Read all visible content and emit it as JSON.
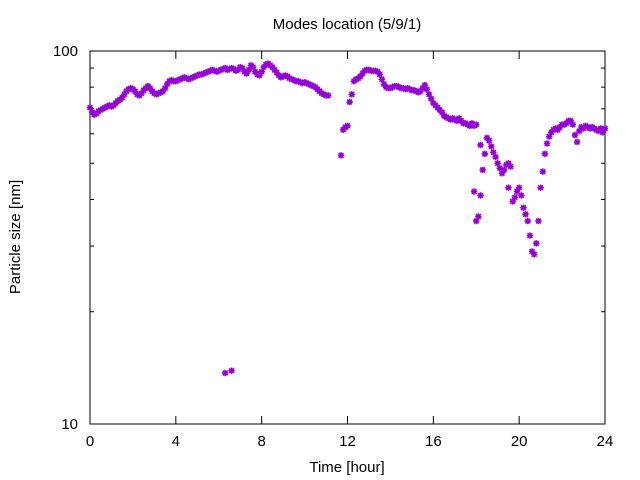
{
  "chart_data": {
    "type": "scatter",
    "title": "Modes location (5/9/1)",
    "xlabel": "Time [hour]",
    "ylabel": "Particle size [nm]",
    "xlim": [
      0,
      24
    ],
    "ylim": [
      10,
      100
    ],
    "y_scale": "log",
    "grid": false,
    "marker_color": "#9400d3",
    "x_ticks": [
      0,
      4,
      8,
      12,
      16,
      20,
      24
    ],
    "y_ticks": [
      10,
      100
    ],
    "series": [
      {
        "points": [
          [
            0.0,
            70.5
          ],
          [
            0.1,
            68.5
          ],
          [
            0.2,
            67.5
          ],
          [
            0.3,
            68.0
          ],
          [
            0.4,
            69.0
          ],
          [
            0.5,
            69.5
          ],
          [
            0.6,
            70.0
          ],
          [
            0.7,
            70.5
          ],
          [
            0.8,
            71.0
          ],
          [
            0.9,
            71.5
          ],
          [
            1.0,
            71.0
          ],
          [
            1.1,
            71.5
          ],
          [
            1.2,
            72.5
          ],
          [
            1.3,
            73.5
          ],
          [
            1.4,
            74.0
          ],
          [
            1.5,
            75.0
          ],
          [
            1.6,
            76.5
          ],
          [
            1.7,
            78.0
          ],
          [
            1.8,
            79.0
          ],
          [
            1.9,
            79.5
          ],
          [
            2.0,
            79.0
          ],
          [
            2.1,
            78.0
          ],
          [
            2.2,
            76.5
          ],
          [
            2.3,
            76.0
          ],
          [
            2.4,
            77.0
          ],
          [
            2.5,
            78.5
          ],
          [
            2.6,
            79.5
          ],
          [
            2.7,
            80.5
          ],
          [
            2.8,
            79.5
          ],
          [
            2.9,
            78.0
          ],
          [
            3.0,
            77.0
          ],
          [
            3.1,
            76.5
          ],
          [
            3.2,
            77.0
          ],
          [
            3.3,
            77.5
          ],
          [
            3.4,
            78.0
          ],
          [
            3.5,
            79.5
          ],
          [
            3.6,
            81.5
          ],
          [
            3.7,
            83.0
          ],
          [
            3.8,
            83.5
          ],
          [
            3.9,
            83.0
          ],
          [
            4.0,
            83.0
          ],
          [
            4.1,
            83.5
          ],
          [
            4.2,
            84.0
          ],
          [
            4.3,
            84.5
          ],
          [
            4.4,
            85.0
          ],
          [
            4.5,
            84.5
          ],
          [
            4.6,
            84.0
          ],
          [
            4.7,
            84.5
          ],
          [
            4.8,
            85.0
          ],
          [
            4.9,
            85.5
          ],
          [
            5.0,
            86.0
          ],
          [
            5.1,
            86.5
          ],
          [
            5.2,
            86.5
          ],
          [
            5.3,
            87.0
          ],
          [
            5.4,
            87.5
          ],
          [
            5.5,
            88.0
          ],
          [
            5.6,
            88.5
          ],
          [
            5.7,
            89.0
          ],
          [
            5.8,
            88.5
          ],
          [
            5.9,
            88.0
          ],
          [
            6.0,
            88.5
          ],
          [
            6.1,
            89.0
          ],
          [
            6.2,
            89.5
          ],
          [
            6.3,
            90.0
          ],
          [
            6.4,
            89.0
          ],
          [
            6.5,
            89.5
          ],
          [
            6.6,
            90.0
          ],
          [
            6.7,
            89.5
          ],
          [
            6.8,
            88.5
          ],
          [
            6.9,
            89.0
          ],
          [
            7.0,
            90.5
          ],
          [
            7.1,
            90.0
          ],
          [
            7.2,
            88.0
          ],
          [
            7.3,
            87.0
          ],
          [
            7.4,
            89.0
          ],
          [
            7.5,
            91.5
          ],
          [
            7.6,
            90.5
          ],
          [
            7.7,
            88.0
          ],
          [
            7.8,
            86.5
          ],
          [
            7.9,
            86.0
          ],
          [
            8.0,
            88.0
          ],
          [
            8.1,
            90.5
          ],
          [
            8.2,
            92.0
          ],
          [
            8.3,
            92.5
          ],
          [
            8.4,
            91.5
          ],
          [
            8.5,
            90.5
          ],
          [
            8.6,
            89.0
          ],
          [
            8.7,
            87.5
          ],
          [
            8.8,
            86.0
          ],
          [
            8.9,
            85.0
          ],
          [
            9.0,
            85.5
          ],
          [
            9.1,
            86.0
          ],
          [
            9.2,
            85.5
          ],
          [
            9.3,
            84.5
          ],
          [
            9.4,
            84.0
          ],
          [
            9.5,
            83.5
          ],
          [
            9.6,
            83.0
          ],
          [
            9.7,
            83.0
          ],
          [
            9.8,
            82.5
          ],
          [
            9.9,
            82.0
          ],
          [
            10.0,
            82.5
          ],
          [
            10.1,
            82.0
          ],
          [
            10.2,
            81.5
          ],
          [
            10.3,
            81.0
          ],
          [
            10.4,
            80.5
          ],
          [
            10.5,
            80.0
          ],
          [
            10.6,
            79.0
          ],
          [
            10.7,
            78.0
          ],
          [
            10.8,
            77.0
          ],
          [
            10.9,
            76.5
          ],
          [
            11.0,
            76.0
          ],
          [
            11.1,
            76.0
          ],
          [
            6.3,
            13.7
          ],
          [
            6.6,
            13.9
          ],
          [
            11.7,
            52.5
          ],
          [
            11.8,
            61.5
          ],
          [
            11.9,
            62.5
          ],
          [
            12.0,
            63.0
          ],
          [
            12.1,
            73.0
          ],
          [
            12.2,
            76.5
          ],
          [
            12.3,
            83.0
          ],
          [
            12.4,
            84.0
          ],
          [
            12.5,
            84.5
          ],
          [
            12.6,
            85.5
          ],
          [
            12.7,
            87.0
          ],
          [
            12.8,
            88.5
          ],
          [
            12.9,
            89.0
          ],
          [
            13.0,
            89.0
          ],
          [
            13.1,
            88.5
          ],
          [
            13.2,
            88.5
          ],
          [
            13.3,
            88.5
          ],
          [
            13.4,
            88.0
          ],
          [
            13.5,
            86.5
          ],
          [
            13.6,
            84.0
          ],
          [
            13.7,
            81.5
          ],
          [
            13.8,
            80.0
          ],
          [
            13.9,
            79.5
          ],
          [
            14.0,
            79.5
          ],
          [
            14.1,
            80.0
          ],
          [
            14.2,
            80.5
          ],
          [
            14.3,
            80.5
          ],
          [
            14.4,
            80.0
          ],
          [
            14.5,
            79.5
          ],
          [
            14.6,
            79.5
          ],
          [
            14.7,
            79.0
          ],
          [
            14.8,
            79.5
          ],
          [
            14.9,
            79.0
          ],
          [
            15.0,
            78.5
          ],
          [
            15.1,
            78.5
          ],
          [
            15.2,
            78.0
          ],
          [
            15.3,
            77.5
          ],
          [
            15.4,
            78.0
          ],
          [
            15.5,
            79.5
          ],
          [
            15.6,
            81.0
          ],
          [
            15.7,
            79.0
          ],
          [
            15.8,
            76.5
          ],
          [
            15.9,
            74.5
          ],
          [
            16.0,
            72.5
          ],
          [
            16.1,
            71.5
          ],
          [
            16.2,
            70.5
          ],
          [
            16.3,
            69.5
          ],
          [
            16.4,
            68.5
          ],
          [
            16.5,
            67.0
          ],
          [
            16.6,
            66.5
          ],
          [
            16.7,
            66.0
          ],
          [
            16.8,
            65.5
          ],
          [
            16.9,
            66.0
          ],
          [
            17.0,
            65.5
          ],
          [
            17.1,
            65.0
          ],
          [
            17.2,
            66.0
          ],
          [
            17.3,
            65.0
          ],
          [
            17.4,
            64.0
          ],
          [
            17.5,
            64.0
          ],
          [
            17.6,
            63.5
          ],
          [
            17.7,
            63.0
          ],
          [
            17.8,
            64.0
          ],
          [
            17.9,
            63.0
          ],
          [
            18.0,
            63.5
          ],
          [
            17.9,
            42.0
          ],
          [
            18.0,
            35.0
          ],
          [
            18.1,
            36.0
          ],
          [
            18.2,
            41.0
          ],
          [
            18.2,
            56.0
          ],
          [
            18.3,
            48.0
          ],
          [
            18.4,
            53.0
          ],
          [
            18.5,
            58.5
          ],
          [
            18.6,
            57.5
          ],
          [
            18.7,
            55.5
          ],
          [
            18.8,
            53.5
          ],
          [
            18.9,
            52.0
          ],
          [
            19.0,
            50.0
          ],
          [
            19.1,
            48.5
          ],
          [
            19.2,
            47.0
          ],
          [
            19.3,
            48.0
          ],
          [
            19.4,
            49.5
          ],
          [
            19.5,
            50.0
          ],
          [
            19.6,
            49.0
          ],
          [
            19.5,
            43.0
          ],
          [
            19.7,
            39.5
          ],
          [
            19.8,
            40.5
          ],
          [
            19.9,
            42.0
          ],
          [
            20.0,
            43.0
          ],
          [
            20.1,
            41.0
          ],
          [
            20.2,
            38.0
          ],
          [
            20.3,
            36.5
          ],
          [
            20.4,
            35.0
          ],
          [
            20.5,
            32.0
          ],
          [
            20.6,
            29.0
          ],
          [
            20.7,
            28.5
          ],
          [
            20.8,
            30.5
          ],
          [
            20.9,
            35.0
          ],
          [
            21.0,
            43.0
          ],
          [
            21.1,
            47.5
          ],
          [
            21.2,
            53.0
          ],
          [
            21.3,
            56.5
          ],
          [
            21.4,
            59.0
          ],
          [
            21.5,
            60.5
          ],
          [
            21.6,
            61.5
          ],
          [
            21.7,
            62.0
          ],
          [
            21.8,
            61.5
          ],
          [
            21.9,
            62.5
          ],
          [
            22.0,
            63.5
          ],
          [
            22.1,
            63.5
          ],
          [
            22.2,
            64.0
          ],
          [
            22.3,
            65.0
          ],
          [
            22.4,
            65.0
          ],
          [
            22.5,
            63.5
          ],
          [
            22.6,
            59.5
          ],
          [
            22.7,
            57.0
          ],
          [
            22.8,
            61.0
          ],
          [
            22.9,
            62.5
          ],
          [
            23.0,
            62.0
          ],
          [
            23.1,
            63.0
          ],
          [
            23.2,
            62.5
          ],
          [
            23.3,
            62.0
          ],
          [
            23.4,
            62.5
          ],
          [
            23.5,
            62.0
          ],
          [
            23.6,
            61.5
          ],
          [
            23.7,
            61.0
          ],
          [
            23.8,
            62.0
          ],
          [
            23.9,
            60.5
          ],
          [
            24.0,
            62.0
          ]
        ]
      }
    ]
  }
}
